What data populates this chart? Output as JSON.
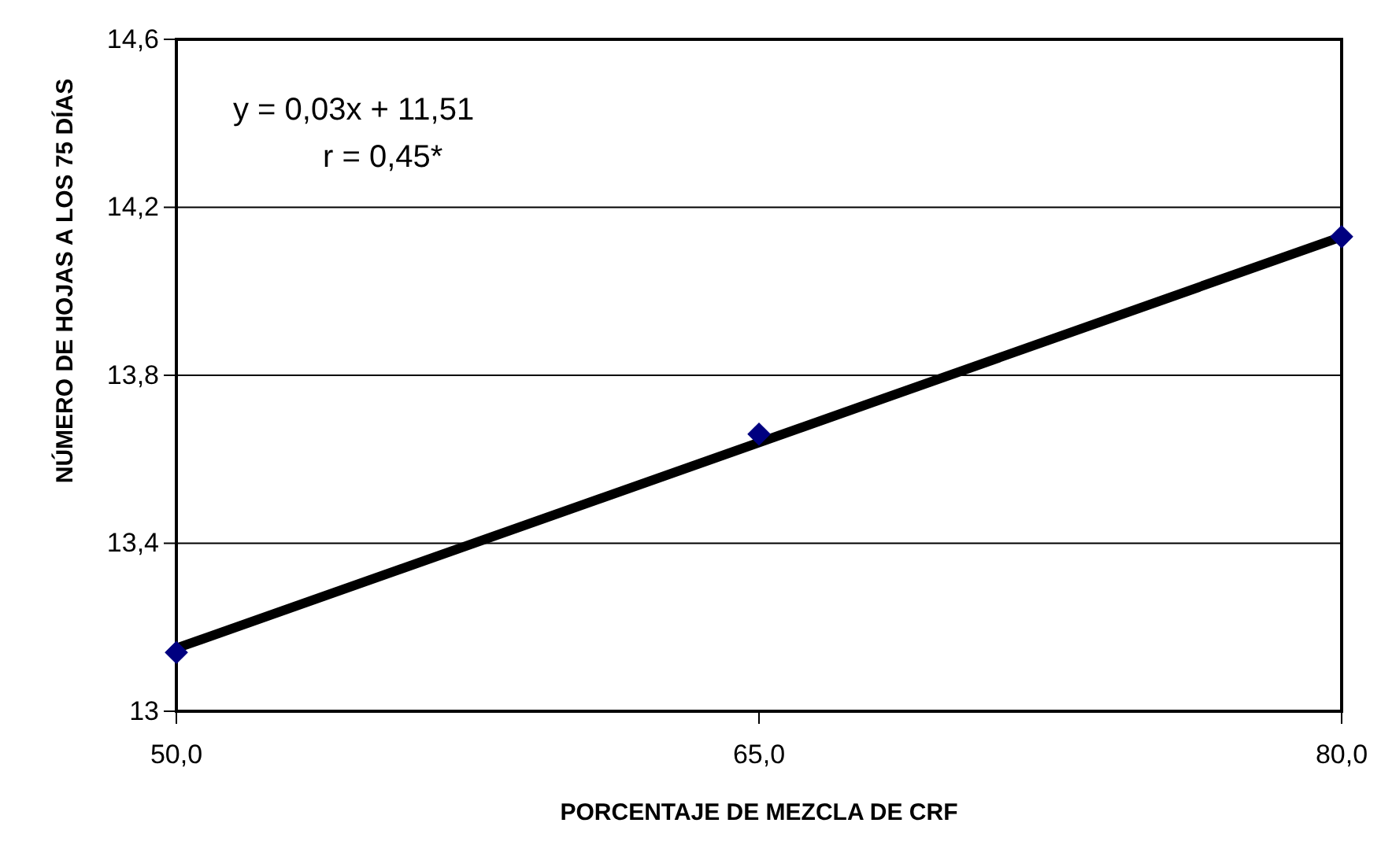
{
  "chart_data": {
    "type": "scatter",
    "xlabel": "PORCENTAJE DE MEZCLA DE CRF",
    "ylabel": "NÚMERO DE HOJAS  A LOS 75 DÍAS",
    "xlim": [
      50,
      80
    ],
    "xticks": [
      {
        "value": 50,
        "label": "50,0"
      },
      {
        "value": 65,
        "label": "65,0"
      },
      {
        "value": 80,
        "label": "80,0"
      }
    ],
    "ylim": [
      13,
      14.6
    ],
    "yticks": [
      {
        "value": 13,
        "label": "13"
      },
      {
        "value": 13.4,
        "label": "13,4"
      },
      {
        "value": 13.8,
        "label": "13,8"
      },
      {
        "value": 14.2,
        "label": "14,2"
      },
      {
        "value": 14.6,
        "label": "14,6"
      }
    ],
    "grid": "y",
    "series": [
      {
        "type": "line",
        "color": "#000000",
        "x": [
          50,
          80
        ],
        "values": [
          13.15,
          14.13
        ]
      },
      {
        "marker": "diamond",
        "color": "#000080",
        "x": [
          50,
          65,
          80
        ],
        "values": [
          13.14,
          13.66,
          14.13
        ]
      }
    ],
    "annotations": [
      "y = 0,03x + 11,51",
      "r = 0,45*"
    ]
  }
}
